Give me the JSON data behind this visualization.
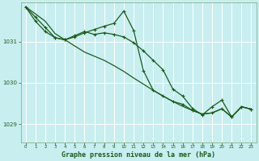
{
  "title": "Graphe pression niveau de la mer (hPa)",
  "bg_color": "#c8eef0",
  "grid_color": "#ffffff",
  "line_color": "#1a5c1a",
  "xlim": [
    -0.5,
    23.5
  ],
  "ylim": [
    1028.55,
    1031.95
  ],
  "yticks": [
    1029,
    1030,
    1031
  ],
  "xticks": [
    0,
    1,
    2,
    3,
    4,
    5,
    6,
    7,
    8,
    9,
    10,
    11,
    12,
    13,
    14,
    15,
    16,
    17,
    18,
    19,
    20,
    21,
    22,
    23
  ],
  "line1": [
    1031.85,
    1031.68,
    1031.5,
    1031.2,
    1031.05,
    1030.9,
    1030.75,
    1030.65,
    1030.55,
    1030.42,
    1030.28,
    1030.12,
    1029.97,
    1029.82,
    1029.68,
    1029.55,
    1029.43,
    1029.33,
    1029.24,
    1029.27,
    1029.37,
    1029.17,
    1029.42,
    1029.36
  ],
  "line2": [
    1031.85,
    1031.6,
    1031.35,
    1031.1,
    1031.05,
    1031.12,
    1031.22,
    1031.3,
    1031.38,
    1031.45,
    1031.75,
    1031.28,
    1030.3,
    1029.82,
    1029.68,
    1029.55,
    1029.48,
    1029.33,
    1029.24,
    1029.27,
    1029.37,
    1029.17,
    1029.42,
    1029.36
  ],
  "line3": [
    1031.85,
    1031.5,
    1031.25,
    1031.1,
    1031.05,
    1031.15,
    1031.25,
    1031.18,
    1031.22,
    1031.18,
    1031.12,
    1030.98,
    1030.78,
    1030.55,
    1030.32,
    1029.85,
    1029.68,
    1029.38,
    1029.22,
    1029.42,
    1029.58,
    1029.17,
    1029.42,
    1029.36
  ]
}
